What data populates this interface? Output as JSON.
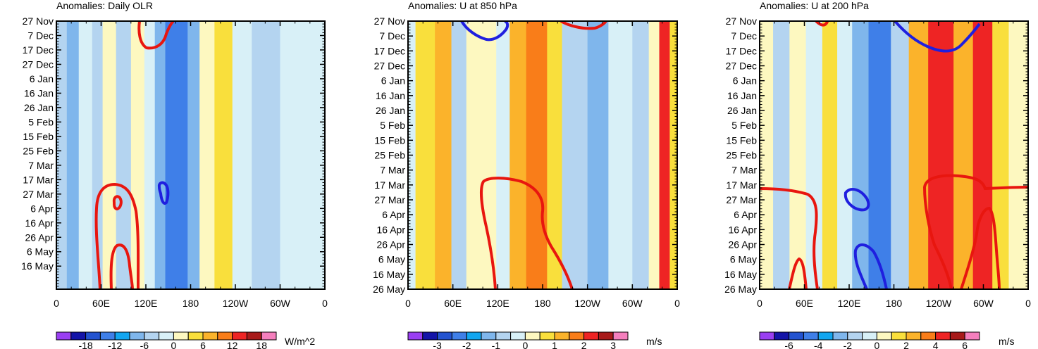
{
  "chart_data": [
    {
      "type": "heatmap",
      "title": "Anomalies: Daily OLR",
      "xlabel": "",
      "ylabel": "",
      "x_tick_labels": [
        "0",
        "60E",
        "120E",
        "180",
        "120W",
        "60W",
        "0"
      ],
      "y_tick_labels": [
        "27 Nov",
        "7 Dec",
        "17 Dec",
        "27 Dec",
        "6 Jan",
        "16 Jan",
        "26 Jan",
        "5 Feb",
        "15 Feb",
        "25 Feb",
        "7 Mar",
        "17 Mar",
        "27 Mar",
        "6 Apr",
        "16 Apr",
        "26 Apr",
        "6 May",
        "16 May"
      ],
      "xlim": [
        0,
        360
      ],
      "colorbar": {
        "labels": [
          "-18",
          "-12",
          "-6",
          "0",
          "6",
          "12",
          "18"
        ],
        "units": "W/m^2",
        "levels": [
          -21,
          -18,
          -15,
          -12,
          -9,
          -6,
          -3,
          0,
          3,
          6,
          9,
          12,
          15,
          18,
          21
        ]
      },
      "bands": [
        {
          "lon": [
            0,
            14
          ],
          "value": -4
        },
        {
          "lon": [
            14,
            30
          ],
          "value": -8
        },
        {
          "lon": [
            30,
            48
          ],
          "value": -2
        },
        {
          "lon": [
            48,
            62
          ],
          "value": -5
        },
        {
          "lon": [
            62,
            80
          ],
          "value": 1
        },
        {
          "lon": [
            80,
            100
          ],
          "value": -3
        },
        {
          "lon": [
            100,
            118
          ],
          "value": 2
        },
        {
          "lon": [
            118,
            132
          ],
          "value": 0
        },
        {
          "lon": [
            132,
            146
          ],
          "value": -7
        },
        {
          "lon": [
            146,
            176
          ],
          "value": -14
        },
        {
          "lon": [
            176,
            192
          ],
          "value": -6
        },
        {
          "lon": [
            192,
            212
          ],
          "value": 2
        },
        {
          "lon": [
            212,
            236
          ],
          "value": 5
        },
        {
          "lon": [
            236,
            262
          ],
          "value": -2
        },
        {
          "lon": [
            262,
            300
          ],
          "value": -3
        },
        {
          "lon": [
            300,
            330
          ],
          "value": -1
        },
        {
          "lon": [
            330,
            360
          ],
          "value": -2
        }
      ]
    },
    {
      "type": "heatmap",
      "title": "Anomalies: U at 850 hPa",
      "xlabel": "",
      "ylabel": "",
      "x_tick_labels": [
        "0",
        "60E",
        "120E",
        "180",
        "120W",
        "60W",
        "0"
      ],
      "y_tick_labels": [
        "27 Nov",
        "7 Dec",
        "17 Dec",
        "27 Dec",
        "6 Jan",
        "16 Jan",
        "26 Jan",
        "5 Feb",
        "15 Feb",
        "25 Feb",
        "7 Mar",
        "17 Mar",
        "27 Mar",
        "6 Apr",
        "16 Apr",
        "26 Apr",
        "6 May",
        "16 May",
        "26 May"
      ],
      "xlim": [
        0,
        360
      ],
      "colorbar": {
        "labels": [
          "-3",
          "-2",
          "-1",
          "0",
          "1",
          "2",
          "3"
        ],
        "units": "m/s",
        "levels": [
          -3.5,
          -3,
          -2.5,
          -2,
          -1.5,
          -1,
          -0.5,
          0,
          0.5,
          1,
          1.5,
          2,
          2.5,
          3,
          3.5
        ]
      },
      "bands": [
        {
          "lon": [
            0,
            10
          ],
          "value": -0.3
        },
        {
          "lon": [
            10,
            36
          ],
          "value": 0.6
        },
        {
          "lon": [
            36,
            58
          ],
          "value": 1.2
        },
        {
          "lon": [
            58,
            78
          ],
          "value": -0.7
        },
        {
          "lon": [
            78,
            96
          ],
          "value": 0.4
        },
        {
          "lon": [
            96,
            118
          ],
          "value": 0.2
        },
        {
          "lon": [
            118,
            136
          ],
          "value": -0.4
        },
        {
          "lon": [
            136,
            158
          ],
          "value": 1.1
        },
        {
          "lon": [
            158,
            186
          ],
          "value": 1.7
        },
        {
          "lon": [
            186,
            206
          ],
          "value": 0.7
        },
        {
          "lon": [
            206,
            240
          ],
          "value": -0.5
        },
        {
          "lon": [
            240,
            268
          ],
          "value": -1.1
        },
        {
          "lon": [
            268,
            300
          ],
          "value": -0.3
        },
        {
          "lon": [
            300,
            322
          ],
          "value": -0.6
        },
        {
          "lon": [
            322,
            336
          ],
          "value": 0.4
        },
        {
          "lon": [
            336,
            350
          ],
          "value": 2.2
        },
        {
          "lon": [
            350,
            360
          ],
          "value": 0.8
        }
      ]
    },
    {
      "type": "heatmap",
      "title": "Anomalies: U at 200 hPa",
      "xlabel": "",
      "ylabel": "",
      "x_tick_labels": [
        "0",
        "60E",
        "120E",
        "180",
        "120W",
        "60W",
        "0"
      ],
      "y_tick_labels": [
        "27 Nov",
        "7 Dec",
        "17 Dec",
        "27 Dec",
        "6 Jan",
        "16 Jan",
        "26 Jan",
        "5 Feb",
        "15 Feb",
        "25 Feb",
        "7 Mar",
        "17 Mar",
        "27 Mar",
        "6 Apr",
        "16 Apr",
        "26 Apr",
        "6 May",
        "16 May",
        "26 May"
      ],
      "xlim": [
        0,
        360
      ],
      "colorbar": {
        "labels": [
          "-6",
          "-4",
          "-2",
          "0",
          "2",
          "4",
          "6"
        ],
        "units": "m/s",
        "levels": [
          -7,
          -6,
          -5,
          -4,
          -3,
          -2,
          -1,
          0,
          1,
          2,
          3,
          4,
          5,
          6,
          7
        ]
      },
      "bands": [
        {
          "lon": [
            0,
            18
          ],
          "value": 0.4
        },
        {
          "lon": [
            18,
            40
          ],
          "value": -1.5
        },
        {
          "lon": [
            40,
            62
          ],
          "value": 0.5
        },
        {
          "lon": [
            62,
            84
          ],
          "value": -0.8
        },
        {
          "lon": [
            84,
            104
          ],
          "value": 1.5
        },
        {
          "lon": [
            104,
            124
          ],
          "value": -0.4
        },
        {
          "lon": [
            124,
            146
          ],
          "value": -2.5
        },
        {
          "lon": [
            146,
            176
          ],
          "value": -4.5
        },
        {
          "lon": [
            176,
            200
          ],
          "value": -1.5
        },
        {
          "lon": [
            200,
            226
          ],
          "value": 2.5
        },
        {
          "lon": [
            226,
            260
          ],
          "value": 4.2
        },
        {
          "lon": [
            260,
            286
          ],
          "value": 3.0
        },
        {
          "lon": [
            286,
            312
          ],
          "value": 4.8
        },
        {
          "lon": [
            312,
            334
          ],
          "value": 1.5
        },
        {
          "lon": [
            334,
            360
          ],
          "value": 0.5
        }
      ]
    }
  ],
  "palette": [
    "#9a3ff2",
    "#1414a8",
    "#2353d0",
    "#3f7fe8",
    "#12a6f0",
    "#7fb6ec",
    "#b4d4f0",
    "#d8f0f7",
    "#fdf8c0",
    "#f9df3c",
    "#fbb32b",
    "#f97d19",
    "#ee2424",
    "#a81a1a",
    "#f57fbd"
  ],
  "contour_colors": {
    "positive": "#e8160f",
    "negative": "#1f1fdf"
  }
}
